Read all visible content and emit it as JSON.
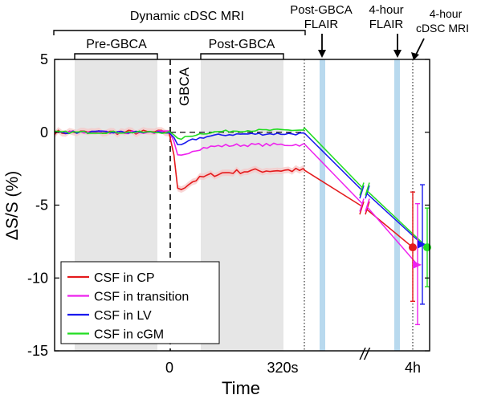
{
  "chart_data": {
    "type": "line",
    "xlabel": "Time",
    "ylabel": "ΔS/S (%)",
    "ylim": [
      -15,
      5
    ],
    "yticks": [
      5,
      0,
      -5,
      -10,
      -15
    ],
    "xtick_labels": [
      "0",
      "320s",
      "4h"
    ],
    "axis_break": "//",
    "gbca_label": "GBCA",
    "legend_placement": "bottom-left",
    "bracket_labels": {
      "dynamic": "Dynamic cDSC MRI",
      "pre": "Pre-GBCA",
      "post": "Post-GBCA"
    },
    "event_labels": [
      {
        "id": "postflair",
        "lines": [
          "Post-GBCA",
          "FLAIR"
        ]
      },
      {
        "id": "flair4h",
        "lines": [
          "4-hour",
          "FLAIR"
        ]
      },
      {
        "id": "cdsc4h",
        "lines": [
          "4-hour",
          "cDSC MRI"
        ]
      }
    ],
    "colors": {
      "cp": "#e41a1c",
      "transition": "#ee22ee",
      "lv": "#1a1aee",
      "cgm": "#22dd22",
      "shade": "#e6e6e6",
      "flair": "#b8d9ee"
    },
    "series": [
      {
        "name": "CSF in CP",
        "key": "cp",
        "dynamic_end": -2.6,
        "mid_value": -5.2,
        "final_value": -7.9,
        "final_err": [
          -11.6,
          -4.1
        ],
        "marker": "circle"
      },
      {
        "name": "CSF in transition",
        "key": "transition",
        "dynamic_end": -0.8,
        "mid_value": -5.0,
        "final_value": -9.1,
        "final_err": [
          -13.2,
          -4.9
        ],
        "marker": "triangle"
      },
      {
        "name": "CSF in LV",
        "key": "lv",
        "dynamic_end": -0.05,
        "mid_value": -4.1,
        "final_value": -7.7,
        "final_err": [
          -11.8,
          -3.6
        ],
        "marker": "triangle"
      },
      {
        "name": "CSF in cGM",
        "key": "cgm",
        "dynamic_end": 0.3,
        "mid_value": -3.9,
        "final_value": -7.9,
        "final_err": [
          -10.6,
          -5.2
        ],
        "marker": "circle"
      }
    ]
  }
}
